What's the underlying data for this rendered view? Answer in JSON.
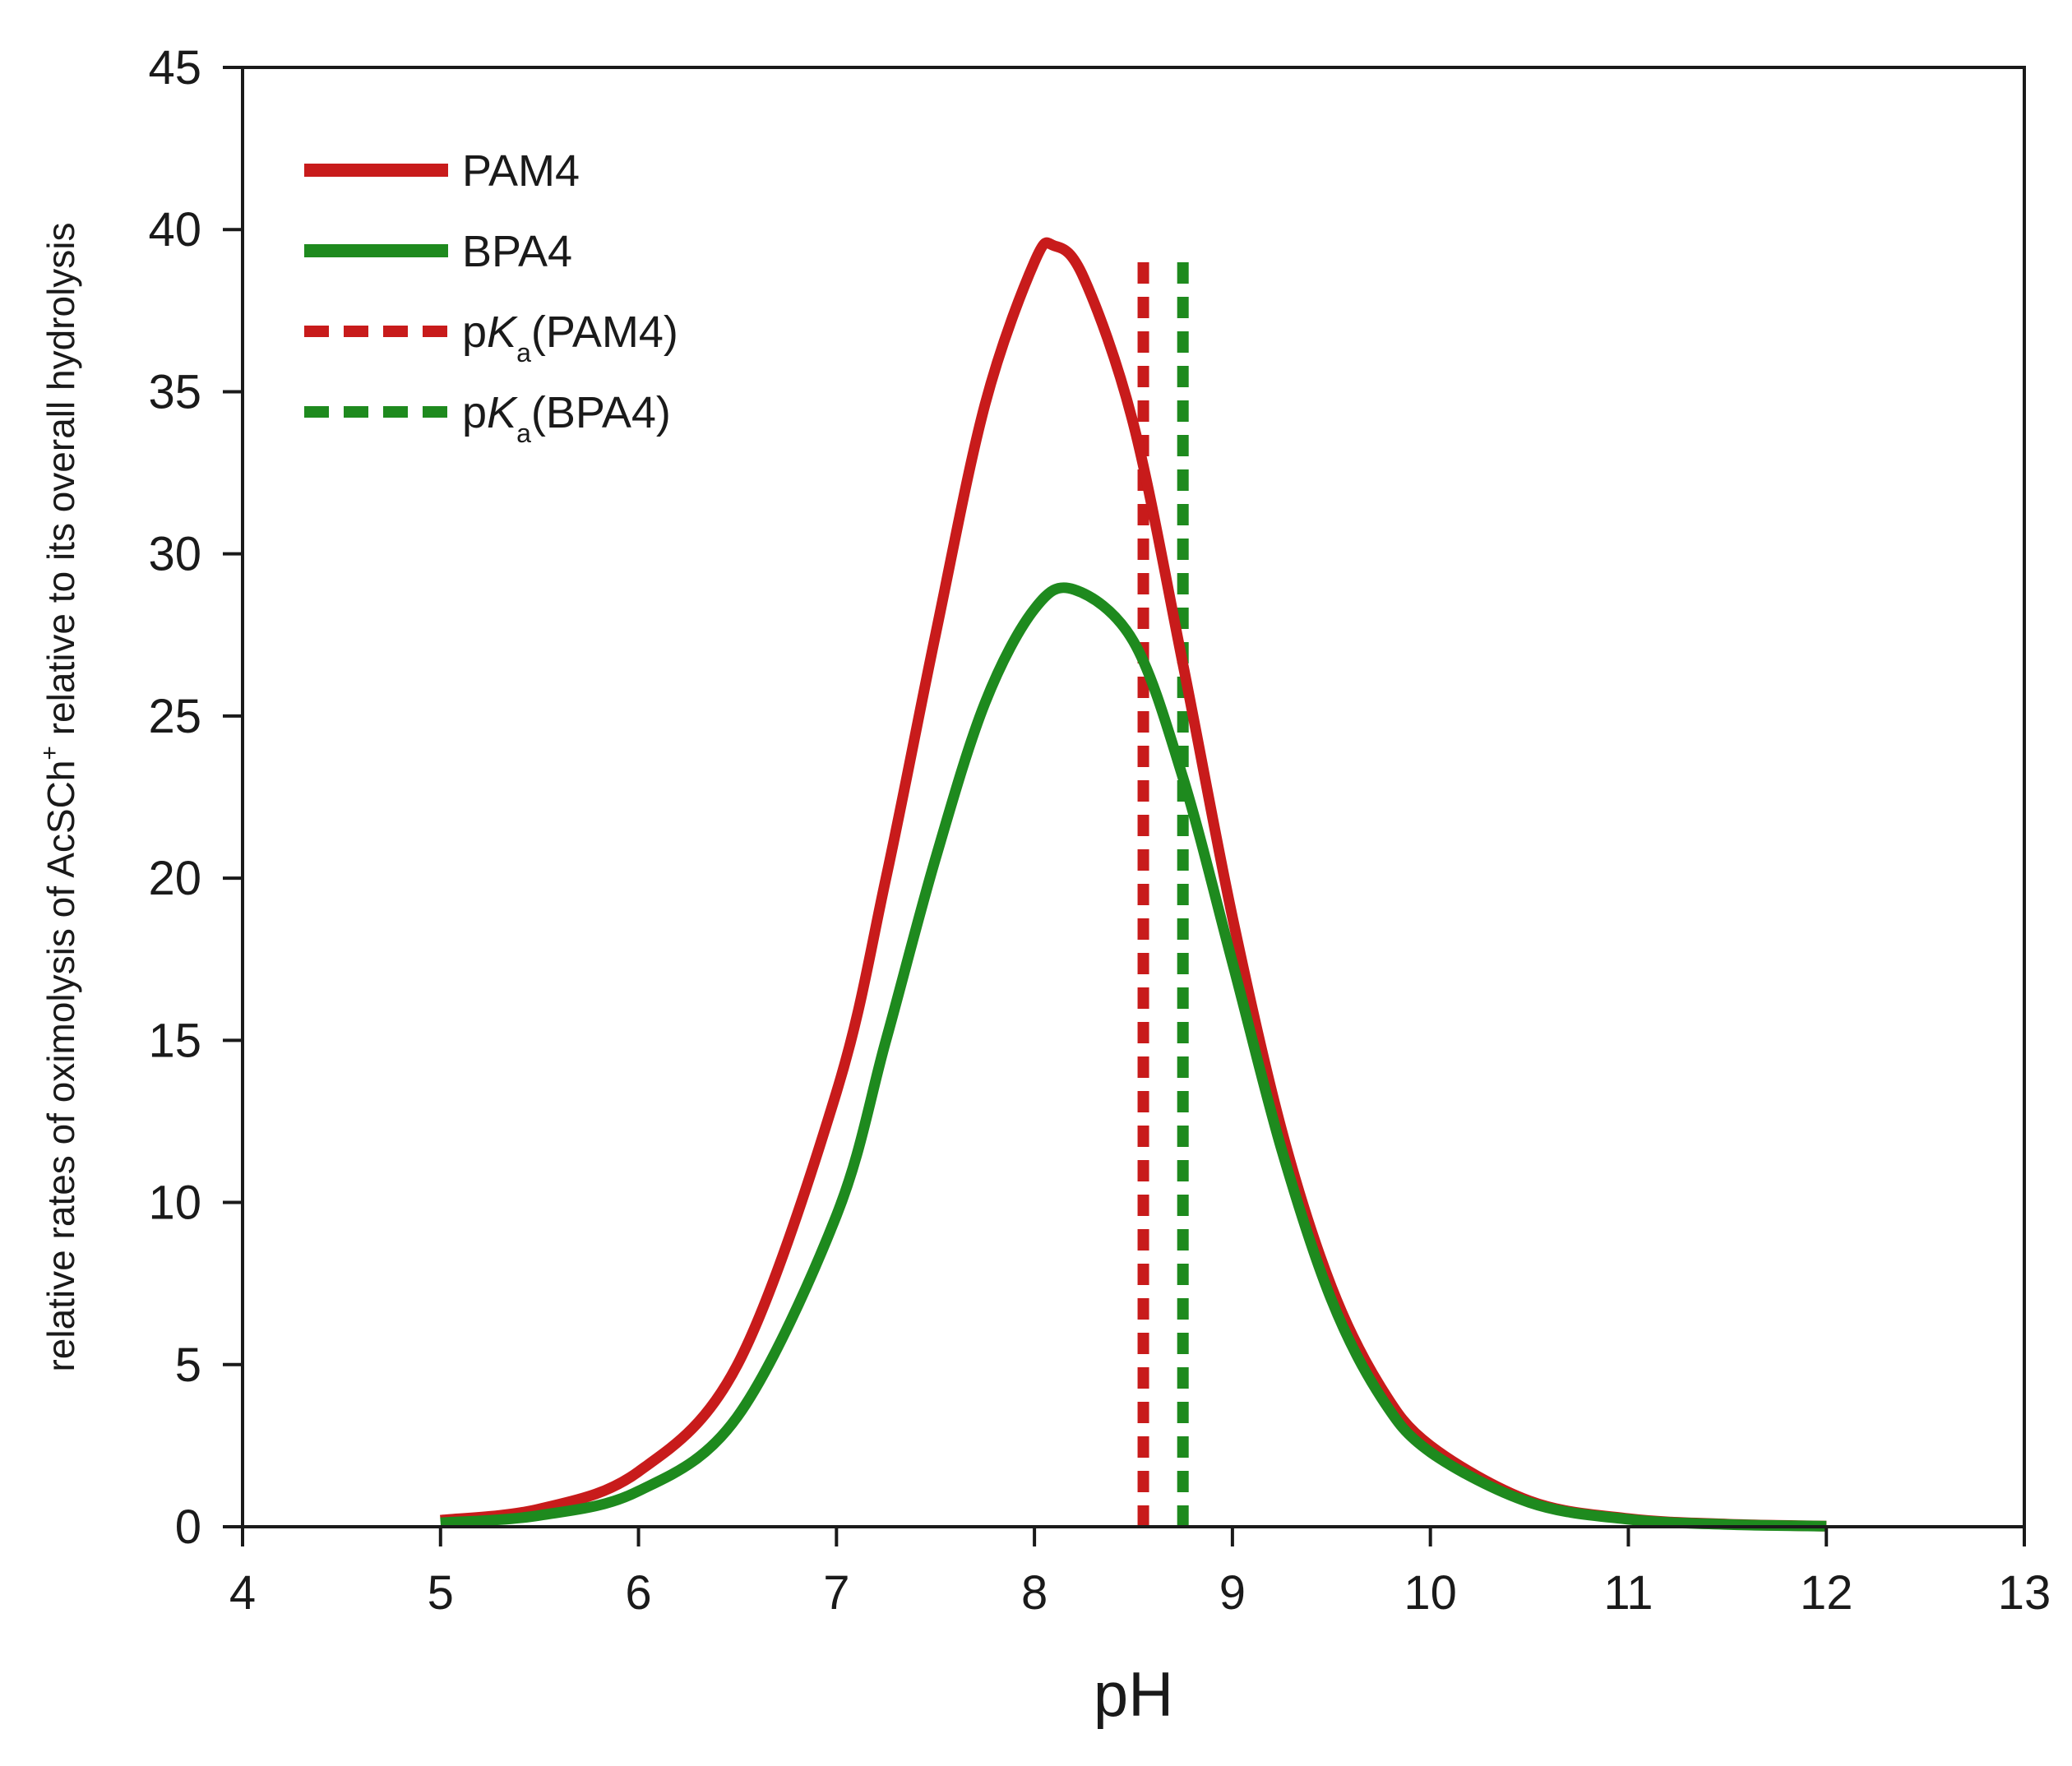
{
  "chart_data": {
    "type": "line",
    "title": "",
    "xlabel": "pH",
    "ylabel": {
      "prefix": "relative rates of oximolysis of AcSCh",
      "superscript": "+",
      "suffix": " relative to its overall hydrolysis"
    },
    "xlim": [
      4,
      13
    ],
    "ylim": [
      0,
      45
    ],
    "x_ticks": [
      4,
      5,
      6,
      7,
      8,
      9,
      10,
      11,
      12,
      13
    ],
    "y_ticks": [
      0,
      5,
      10,
      15,
      20,
      25,
      30,
      35,
      40,
      45
    ],
    "grid": false,
    "legend_position": "top-left",
    "series": [
      {
        "name": "PAM4",
        "style": "solid",
        "color": "#c81b1b",
        "x": [
          5.0,
          5.5,
          6.0,
          6.5,
          7.0,
          7.25,
          7.5,
          7.75,
          8.0,
          8.1,
          8.25,
          8.5,
          8.75,
          9.0,
          9.25,
          9.5,
          9.75,
          10.0,
          10.5,
          11.0,
          11.5,
          12.0
        ],
        "y": [
          0.2,
          0.55,
          1.7,
          5.0,
          13.4,
          20.0,
          27.5,
          34.6,
          39.0,
          39.5,
          38.5,
          34.0,
          26.6,
          18.8,
          12.2,
          7.4,
          4.3,
          2.5,
          0.8,
          0.25,
          0.08,
          0.02
        ]
      },
      {
        "name": "BPA4",
        "style": "solid",
        "color": "#1e8a1e",
        "x": [
          5.0,
          5.5,
          6.0,
          6.5,
          7.0,
          7.25,
          7.5,
          7.75,
          8.0,
          8.2,
          8.5,
          8.75,
          9.0,
          9.25,
          9.5,
          9.75,
          10.0,
          10.5,
          11.0,
          11.5,
          12.0
        ],
        "y": [
          0.12,
          0.35,
          1.1,
          3.4,
          9.6,
          15.0,
          20.6,
          25.4,
          28.3,
          28.9,
          27.3,
          23.1,
          17.4,
          11.6,
          7.0,
          4.0,
          2.3,
          0.75,
          0.23,
          0.07,
          0.02
        ]
      },
      {
        "name": "pKa(PAM4)",
        "legend_parts": [
          "p",
          "K",
          "a",
          "(PAM4)"
        ],
        "style": "dashed",
        "color": "#c81b1b",
        "x": [
          8.55,
          8.55
        ],
        "y": [
          0,
          39.3
        ]
      },
      {
        "name": "pKa(BPA4)",
        "legend_parts": [
          "p",
          "K",
          "a",
          "(BPA4)"
        ],
        "style": "dashed",
        "color": "#1e8a1e",
        "x": [
          8.75,
          8.75
        ],
        "y": [
          0,
          39.3
        ]
      }
    ]
  }
}
